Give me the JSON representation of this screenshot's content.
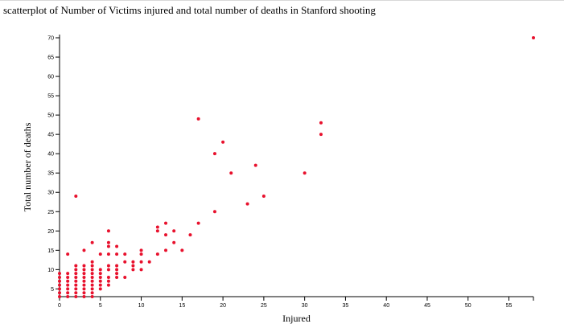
{
  "chart_data": {
    "type": "scatter",
    "title": "scatterplot of Number of Victims injured and total number of deaths in Stanford shooting",
    "xlabel": "Injured",
    "ylabel": "Total number of deaths",
    "xlim": [
      0,
      58
    ],
    "ylim": [
      3,
      72
    ],
    "xticks": [
      0,
      5,
      10,
      15,
      20,
      25,
      30,
      35,
      40,
      45,
      50,
      55
    ],
    "yticks": [
      5,
      10,
      15,
      20,
      25,
      30,
      35,
      40,
      45,
      50,
      55,
      60,
      65,
      70
    ],
    "point_color": "#e8112d",
    "points": [
      [
        58,
        70
      ],
      [
        17,
        49
      ],
      [
        32,
        48
      ],
      [
        32,
        45
      ],
      [
        20,
        43
      ],
      [
        19,
        40
      ],
      [
        24,
        37
      ],
      [
        21,
        35
      ],
      [
        30,
        35
      ],
      [
        2,
        29
      ],
      [
        25,
        29
      ],
      [
        23,
        27
      ],
      [
        19,
        25
      ],
      [
        13,
        22
      ],
      [
        17,
        22
      ],
      [
        12,
        21
      ],
      [
        12,
        20
      ],
      [
        14,
        20
      ],
      [
        6,
        20
      ],
      [
        13,
        19
      ],
      [
        16,
        19
      ],
      [
        4,
        17
      ],
      [
        6,
        17
      ],
      [
        14,
        17
      ],
      [
        6,
        16
      ],
      [
        7,
        16
      ],
      [
        1,
        14
      ],
      [
        3,
        15
      ],
      [
        10,
        15
      ],
      [
        13,
        15
      ],
      [
        15,
        15
      ],
      [
        5,
        14
      ],
      [
        6,
        14
      ],
      [
        7,
        14
      ],
      [
        8,
        14
      ],
      [
        10,
        14
      ],
      [
        12,
        14
      ],
      [
        8,
        12
      ],
      [
        9,
        12
      ],
      [
        10,
        12
      ],
      [
        11,
        12
      ],
      [
        9,
        11
      ],
      [
        7,
        11
      ],
      [
        6,
        11
      ],
      [
        6,
        10
      ],
      [
        7,
        10
      ],
      [
        9,
        10
      ],
      [
        10,
        10
      ],
      [
        5,
        10
      ],
      [
        7,
        9
      ],
      [
        7,
        8
      ],
      [
        8,
        8
      ],
      [
        6,
        8
      ],
      [
        6,
        7
      ],
      [
        6,
        6
      ],
      [
        5,
        6
      ],
      [
        0,
        9
      ],
      [
        0,
        8
      ],
      [
        0,
        7
      ],
      [
        0,
        6
      ],
      [
        0,
        5
      ],
      [
        0,
        4
      ],
      [
        0,
        3
      ],
      [
        1,
        9
      ],
      [
        1,
        8
      ],
      [
        1,
        7
      ],
      [
        1,
        6
      ],
      [
        1,
        5
      ],
      [
        1,
        4
      ],
      [
        1,
        3
      ],
      [
        2,
        11
      ],
      [
        2,
        10
      ],
      [
        2,
        9
      ],
      [
        2,
        8
      ],
      [
        2,
        7
      ],
      [
        2,
        6
      ],
      [
        2,
        5
      ],
      [
        2,
        4
      ],
      [
        2,
        3
      ],
      [
        3,
        11
      ],
      [
        3,
        10
      ],
      [
        3,
        9
      ],
      [
        3,
        8
      ],
      [
        3,
        7
      ],
      [
        3,
        6
      ],
      [
        3,
        5
      ],
      [
        3,
        4
      ],
      [
        3,
        3
      ],
      [
        4,
        12
      ],
      [
        4,
        11
      ],
      [
        4,
        10
      ],
      [
        4,
        9
      ],
      [
        4,
        8
      ],
      [
        4,
        7
      ],
      [
        4,
        6
      ],
      [
        4,
        5
      ],
      [
        4,
        4
      ],
      [
        4,
        3
      ],
      [
        5,
        9
      ],
      [
        5,
        8
      ],
      [
        5,
        7
      ],
      [
        5,
        5
      ]
    ]
  }
}
